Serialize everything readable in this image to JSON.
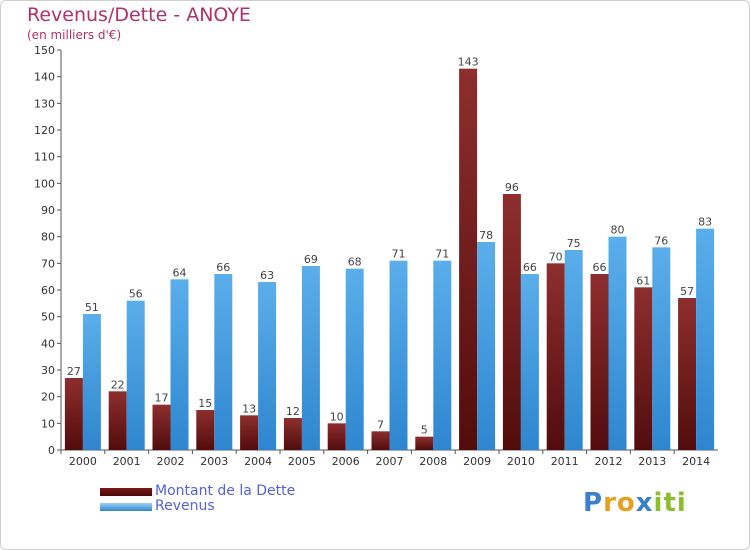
{
  "title": "Revenus/Dette - ANOYE",
  "subtitle": "(en milliers d'€)",
  "colors": {
    "dette": "#7a1a1a",
    "revenus": "#4a9fe0",
    "title": "#b0306b",
    "legend_text": "#5661d8"
  },
  "logo": {
    "text": "Proxiti",
    "letters": [
      "P",
      "r",
      "o",
      "x",
      "i",
      "t",
      "i"
    ],
    "letter_colors": [
      "#3a7fc8",
      "#e5a020",
      "#e5a020",
      "#3a7fc8",
      "#8cbd2c",
      "#8cbd2c",
      "#8cbd2c"
    ]
  },
  "chart_data": {
    "type": "bar",
    "title": "Revenus/Dette - ANOYE",
    "subtitle": "(en milliers d'€)",
    "categories": [
      "2000",
      "2001",
      "2002",
      "2003",
      "2004",
      "2005",
      "2006",
      "2007",
      "2008",
      "2009",
      "2010",
      "2011",
      "2012",
      "2013",
      "2014"
    ],
    "series": [
      {
        "name": "Montant de la Dette",
        "color": "#7a1a1a",
        "values": [
          27,
          22,
          17,
          15,
          13,
          12,
          10,
          7,
          5,
          143,
          96,
          70,
          66,
          61,
          57
        ]
      },
      {
        "name": "Revenus",
        "color": "#4a9fe0",
        "values": [
          51,
          56,
          64,
          66,
          63,
          69,
          68,
          71,
          71,
          78,
          66,
          75,
          80,
          76,
          83
        ]
      }
    ],
    "ylim": [
      0,
      150
    ],
    "yticks": [
      0,
      10,
      20,
      30,
      40,
      50,
      60,
      70,
      80,
      90,
      100,
      110,
      120,
      130,
      140,
      150
    ],
    "grid": false,
    "legend": "bottom-left"
  }
}
